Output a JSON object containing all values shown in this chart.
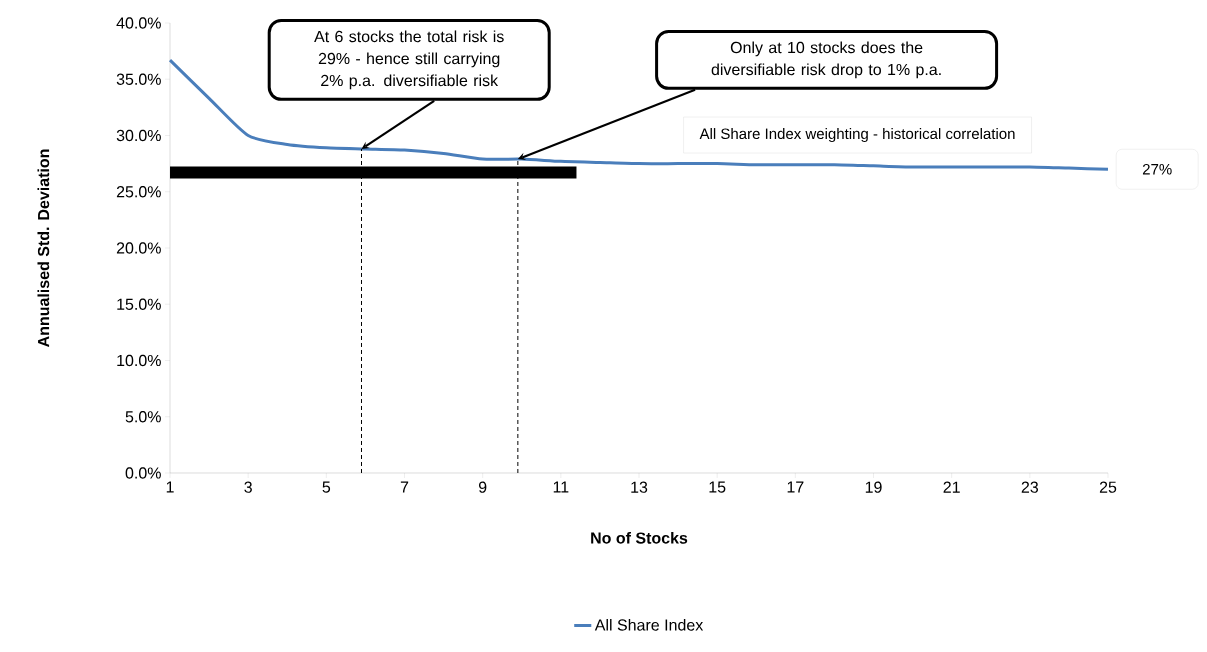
{
  "chart_data": {
    "type": "line",
    "xlabel": "No of Stocks",
    "ylabel": "Annualised Std. Deviation",
    "xlim": [
      1,
      25
    ],
    "ylim": [
      0,
      40
    ],
    "xticks": [
      1,
      3,
      5,
      7,
      9,
      11,
      13,
      15,
      17,
      19,
      21,
      23,
      25
    ],
    "yticks": [
      {
        "value": 0,
        "label": "0.0%"
      },
      {
        "value": 5,
        "label": "5.0%"
      },
      {
        "value": 10,
        "label": "10.0%"
      },
      {
        "value": 15,
        "label": "15.0%"
      },
      {
        "value": 20,
        "label": "20.0%"
      },
      {
        "value": 25,
        "label": "25.0%"
      },
      {
        "value": 30,
        "label": "30.0%"
      },
      {
        "value": 35,
        "label": "35.0%"
      },
      {
        "value": 40,
        "label": "40.0%"
      }
    ],
    "x": [
      1,
      2,
      3,
      4,
      5,
      6,
      7,
      8,
      9,
      10,
      11,
      12,
      13,
      14,
      15,
      16,
      17,
      18,
      19,
      20,
      21,
      22,
      23,
      24,
      25
    ],
    "series": [
      {
        "name": "All Share Index",
        "color": "#4a7ebb",
        "values": [
          36.7,
          33.3,
          30.0,
          29.2,
          28.9,
          28.8,
          28.7,
          28.4,
          27.9,
          27.9,
          27.7,
          27.6,
          27.5,
          27.5,
          27.5,
          27.4,
          27.4,
          27.4,
          27.3,
          27.2,
          27.2,
          27.2,
          27.2,
          27.1,
          27.0
        ]
      },
      {
        "color": "#000000",
        "x": [
          1,
          11.4
        ],
        "values": [
          26.7,
          26.7
        ]
      },
      {
        "color": "#000000",
        "x": [
          5.9,
          5.9
        ],
        "values": [
          0,
          28.8
        ],
        "line_style": "dashed"
      },
      {
        "color": "#000000",
        "x": [
          9.9,
          9.9
        ],
        "values": [
          0,
          27.9
        ],
        "line_style": "dashed"
      }
    ],
    "annotations": [
      {
        "text": "At 6 stocks the total risk is 29% - hence still carrying 2% p.a. diversifiable risk",
        "x": 5.9,
        "y": 28.8
      },
      {
        "text": "Only at 10 stocks does the diversifiable risk drop to 1% p.a.",
        "x": 9.9,
        "y": 27.9
      },
      "All Share Index weighting - historical correlation",
      {
        "text": "27%",
        "x": 25,
        "y": 27
      }
    ],
    "legend": "bottom",
    "grid": false,
    "marker": "none",
    "line_style": "solid"
  }
}
